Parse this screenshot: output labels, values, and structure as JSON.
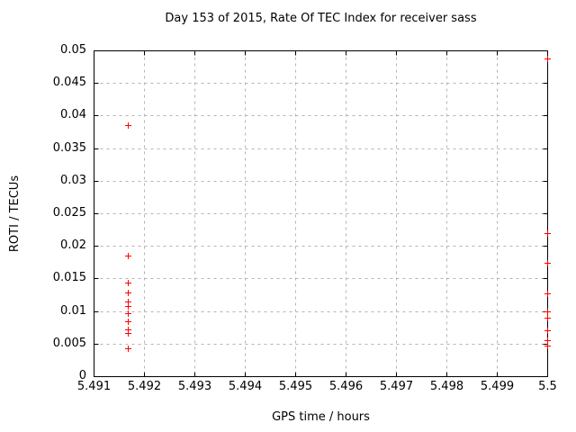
{
  "chart_data": {
    "type": "scatter",
    "title": "Day 153 of 2015, Rate Of TEC Index for receiver sass",
    "xlabel": "GPS time / hours",
    "ylabel": "ROTI / TECUs",
    "xlim": [
      5.491,
      5.5
    ],
    "ylim": [
      0,
      0.05
    ],
    "grid": true,
    "legend": "none",
    "axis_color": "#000000",
    "grid_color": "#b4b4b4",
    "background_color": "#ffffff",
    "x_ticks": [
      {
        "v": 5.491,
        "label": "5.491"
      },
      {
        "v": 5.492,
        "label": "5.492"
      },
      {
        "v": 5.493,
        "label": "5.493"
      },
      {
        "v": 5.494,
        "label": "5.494"
      },
      {
        "v": 5.495,
        "label": "5.495"
      },
      {
        "v": 5.496,
        "label": "5.496"
      },
      {
        "v": 5.497,
        "label": "5.497"
      },
      {
        "v": 5.498,
        "label": "5.498"
      },
      {
        "v": 5.499,
        "label": "5.499"
      },
      {
        "v": 5.5,
        "label": "5.5"
      }
    ],
    "y_ticks": [
      {
        "v": 0,
        "label": "0"
      },
      {
        "v": 0.005,
        "label": "0.005"
      },
      {
        "v": 0.01,
        "label": "0.01"
      },
      {
        "v": 0.015,
        "label": "0.015"
      },
      {
        "v": 0.02,
        "label": "0.02"
      },
      {
        "v": 0.025,
        "label": "0.025"
      },
      {
        "v": 0.03,
        "label": "0.03"
      },
      {
        "v": 0.035,
        "label": "0.035"
      },
      {
        "v": 0.04,
        "label": "0.04"
      },
      {
        "v": 0.045,
        "label": "0.045"
      },
      {
        "v": 0.05,
        "label": "0.05"
      }
    ],
    "series": [
      {
        "name": "ROTI",
        "marker": "plus",
        "color": "#ff0000",
        "points": [
          [
            5.49167,
            0.0385
          ],
          [
            5.49167,
            0.0185
          ],
          [
            5.49167,
            0.0143
          ],
          [
            5.49167,
            0.0129
          ],
          [
            5.49167,
            0.0114
          ],
          [
            5.49167,
            0.0108
          ],
          [
            5.49167,
            0.0096
          ],
          [
            5.49167,
            0.0084
          ],
          [
            5.49167,
            0.0072
          ],
          [
            5.49167,
            0.0066
          ],
          [
            5.49167,
            0.0043
          ],
          [
            5.5,
            0.0488
          ],
          [
            5.5,
            0.022
          ],
          [
            5.5,
            0.0174
          ],
          [
            5.5,
            0.0127
          ],
          [
            5.5,
            0.01
          ],
          [
            5.5,
            0.009
          ],
          [
            5.5,
            0.007
          ],
          [
            5.5,
            0.0055
          ],
          [
            5.5,
            0.0047
          ]
        ]
      }
    ]
  }
}
